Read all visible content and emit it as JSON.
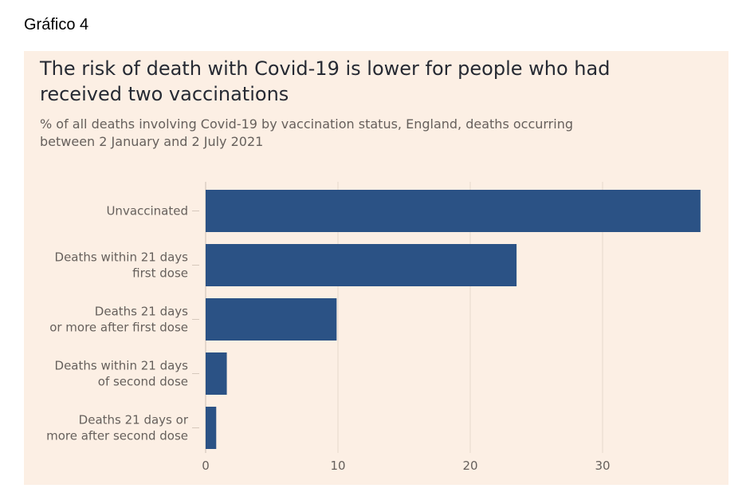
{
  "figure_label": "Gráfico 4",
  "chart_data": {
    "type": "bar",
    "orientation": "horizontal",
    "title": "The risk of death with Covid-19 is lower for people who had received two vaccinations",
    "subtitle": "% of all deaths involving Covid-19 by vaccination status, England, deaths occurring between 2 January and 2 July 2021",
    "categories": [
      [
        "Unvaccinated"
      ],
      [
        "Deaths within 21 days",
        "first dose"
      ],
      [
        "Deaths 21 days",
        "or more after first dose"
      ],
      [
        "Deaths within 21 days",
        "of second dose"
      ],
      [
        "Deaths 21 days or",
        "more after second dose"
      ]
    ],
    "values": [
      37.4,
      23.5,
      9.9,
      1.6,
      0.8
    ],
    "xlim": [
      0,
      39.5
    ],
    "xticks": [
      0,
      10,
      20,
      30
    ],
    "grid": true,
    "bar_color": "#2b5285"
  }
}
